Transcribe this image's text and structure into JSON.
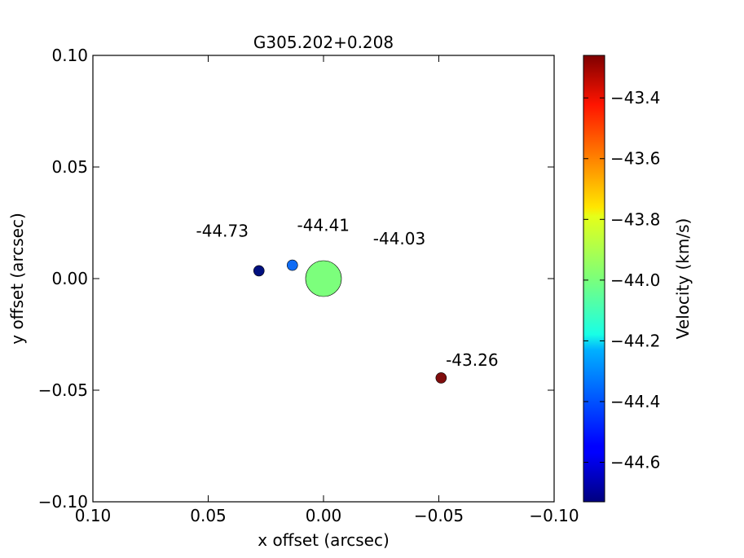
{
  "chart_data": {
    "type": "scatter",
    "title": "G305.202+0.208",
    "xlabel": "x offset (arcsec)",
    "ylabel": "y offset (arcsec)",
    "xlim": [
      0.1,
      -0.1
    ],
    "ylim": [
      -0.1,
      0.1
    ],
    "xticks": [
      "0.10",
      "0.05",
      "0.00",
      "−0.05",
      "−0.10"
    ],
    "xtick_values": [
      0.1,
      0.05,
      0.0,
      -0.05,
      -0.1
    ],
    "yticks": [
      "0.10",
      "0.05",
      "0.00",
      "−0.05",
      "−0.10"
    ],
    "ytick_values": [
      0.1,
      0.05,
      0.0,
      -0.05,
      -0.1
    ],
    "grid": false,
    "points": [
      {
        "x": 0.028,
        "y": 0.0035,
        "velocity": -44.73,
        "label": "-44.73",
        "color": "#00107f",
        "size": "small"
      },
      {
        "x": 0.0135,
        "y": 0.006,
        "velocity": -44.41,
        "label": "-44.41",
        "color": "#0f6cf5",
        "size": "small"
      },
      {
        "x": 0.0,
        "y": 0.0,
        "velocity": -44.03,
        "label": "-44.03",
        "color": "#7cff7c",
        "size": "large"
      },
      {
        "x": -0.051,
        "y": -0.0445,
        "velocity": -43.26,
        "label": "-43.26",
        "color": "#7f0d0d",
        "size": "small"
      }
    ],
    "colorbar": {
      "label": "Velocity (km/s)",
      "min": -44.73,
      "max": -43.26,
      "cmap": "jet",
      "ticks": [
        "−43.4",
        "−43.6",
        "−43.8",
        "−44.0",
        "−44.2",
        "−44.4",
        "−44.6"
      ],
      "tick_values": [
        -43.4,
        -43.6,
        -43.8,
        -44.0,
        -44.2,
        -44.4,
        -44.6
      ]
    }
  }
}
